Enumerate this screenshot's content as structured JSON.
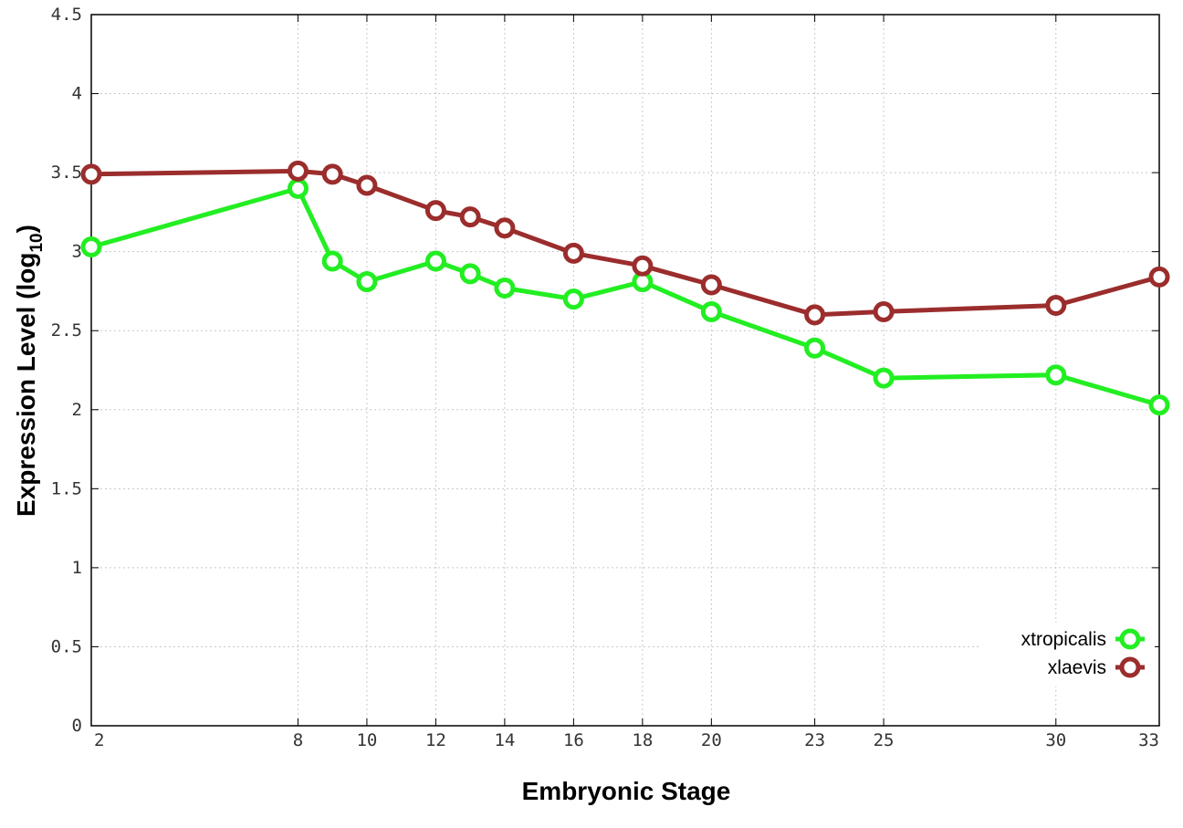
{
  "chart_data": {
    "type": "line",
    "xlabel": "Embryonic Stage",
    "ylabel": {
      "main": "Expression Level (log",
      "sub": "10",
      "close": ")"
    },
    "x_ticks": [
      "2",
      "8",
      "10",
      "12",
      "14",
      "16",
      "18",
      "20",
      "23",
      "25",
      "30",
      "33"
    ],
    "y_ticks": [
      "0",
      "0.5",
      "1",
      "1.5",
      "2",
      "2.5",
      "3",
      "3.5",
      "4",
      "4.5"
    ],
    "xlim": [
      2,
      33
    ],
    "ylim": [
      0,
      4.5
    ],
    "grid": true,
    "legend_position": "bottom-right",
    "series": [
      {
        "name": "xtropicalis",
        "color": "#22ee22",
        "x": [
          2,
          8,
          9,
          10,
          12,
          13,
          14,
          16,
          18,
          20,
          23,
          25,
          30,
          33
        ],
        "values": [
          3.03,
          3.4,
          2.94,
          2.81,
          2.94,
          2.86,
          2.77,
          2.7,
          2.81,
          2.62,
          2.39,
          2.2,
          2.22,
          2.03
        ]
      },
      {
        "name": "xlaevis",
        "color": "#9b2d2d",
        "x": [
          2,
          8,
          9,
          10,
          12,
          13,
          14,
          16,
          18,
          20,
          23,
          25,
          30,
          33
        ],
        "values": [
          3.49,
          3.51,
          3.49,
          3.42,
          3.26,
          3.22,
          3.15,
          2.99,
          2.91,
          2.79,
          2.6,
          2.62,
          2.66,
          2.84
        ]
      }
    ]
  }
}
